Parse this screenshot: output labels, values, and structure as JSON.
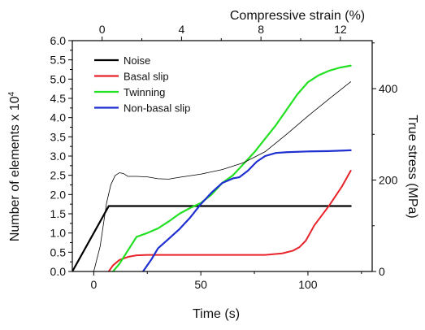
{
  "chart_data": {
    "type": "line",
    "xlabel": "Time (s)",
    "ylabel": "Number of elements x 10",
    "ylabel_sup": "4",
    "y2label": "True stress (MPa)",
    "x2label": "Compressive strain (%)",
    "xlim": [
      -10,
      130
    ],
    "ylim": [
      0,
      6.0
    ],
    "y2lim": [
      0,
      505
    ],
    "x2lim": [
      -1.5,
      13.6
    ],
    "xticks": [
      0,
      50,
      100
    ],
    "yticks": [
      "0.0",
      "0.5",
      "1.0",
      "1.5",
      "2.0",
      "2.5",
      "3.0",
      "3.5",
      "4.0",
      "4.5",
      "5.0",
      "5.5",
      "6.0"
    ],
    "y2ticks": [
      0,
      200,
      400
    ],
    "x2ticks": [
      0,
      4,
      8,
      12
    ],
    "legend_position": "top-left",
    "series": [
      {
        "name": "Noise",
        "color": "#000000",
        "width": 2.2,
        "axis": "left",
        "points": [
          [
            -10,
            0.0
          ],
          [
            7,
            1.7
          ],
          [
            120,
            1.7
          ]
        ]
      },
      {
        "name": "Basal slip",
        "color": "#e8232a",
        "width": 2,
        "axis": "left",
        "points": [
          [
            7,
            0.0
          ],
          [
            9,
            0.16
          ],
          [
            12,
            0.3
          ],
          [
            16,
            0.38
          ],
          [
            20,
            0.42
          ],
          [
            25,
            0.43
          ],
          [
            40,
            0.43
          ],
          [
            60,
            0.43
          ],
          [
            80,
            0.43
          ],
          [
            88,
            0.47
          ],
          [
            93,
            0.54
          ],
          [
            96,
            0.63
          ],
          [
            99,
            0.8
          ],
          [
            103,
            1.2
          ],
          [
            110,
            1.72
          ],
          [
            116,
            2.22
          ],
          [
            120,
            2.62
          ]
        ]
      },
      {
        "name": "Twinning",
        "color": "#22e022",
        "width": 2.2,
        "axis": "left",
        "points": [
          [
            9,
            0.0
          ],
          [
            12,
            0.2
          ],
          [
            16,
            0.55
          ],
          [
            20,
            0.9
          ],
          [
            25,
            1.0
          ],
          [
            30,
            1.12
          ],
          [
            35,
            1.3
          ],
          [
            40,
            1.5
          ],
          [
            45,
            1.65
          ],
          [
            50,
            1.78
          ],
          [
            55,
            2.0
          ],
          [
            60,
            2.3
          ],
          [
            65,
            2.5
          ],
          [
            70,
            2.8
          ],
          [
            75,
            3.1
          ],
          [
            80,
            3.45
          ],
          [
            85,
            3.8
          ],
          [
            90,
            4.2
          ],
          [
            95,
            4.6
          ],
          [
            100,
            4.92
          ],
          [
            105,
            5.1
          ],
          [
            110,
            5.22
          ],
          [
            115,
            5.3
          ],
          [
            120,
            5.35
          ]
        ]
      },
      {
        "name": "Non-basal slip",
        "color": "#1f2fd0",
        "width": 2.2,
        "axis": "left",
        "points": [
          [
            23,
            0.0
          ],
          [
            27,
            0.32
          ],
          [
            30,
            0.6
          ],
          [
            35,
            0.85
          ],
          [
            40,
            1.1
          ],
          [
            45,
            1.4
          ],
          [
            50,
            1.75
          ],
          [
            55,
            2.05
          ],
          [
            60,
            2.3
          ],
          [
            65,
            2.42
          ],
          [
            68,
            2.45
          ],
          [
            72,
            2.62
          ],
          [
            76,
            2.85
          ],
          [
            80,
            3.0
          ],
          [
            85,
            3.08
          ],
          [
            90,
            3.1
          ],
          [
            100,
            3.12
          ],
          [
            110,
            3.13
          ],
          [
            120,
            3.15
          ]
        ]
      },
      {
        "name": "",
        "color": "#000000",
        "width": 0.8,
        "axis": "right",
        "points": [
          [
            0,
            0
          ],
          [
            3,
            55
          ],
          [
            6,
            150
          ],
          [
            8,
            190
          ],
          [
            10,
            210
          ],
          [
            12,
            216
          ],
          [
            14,
            214
          ],
          [
            16,
            208
          ],
          [
            20,
            208
          ],
          [
            25,
            207
          ],
          [
            30,
            203
          ],
          [
            35,
            202
          ],
          [
            40,
            206
          ],
          [
            50,
            213
          ],
          [
            60,
            223
          ],
          [
            70,
            238
          ],
          [
            80,
            262
          ],
          [
            90,
            300
          ],
          [
            100,
            340
          ],
          [
            110,
            378
          ],
          [
            120,
            415
          ]
        ]
      }
    ]
  }
}
